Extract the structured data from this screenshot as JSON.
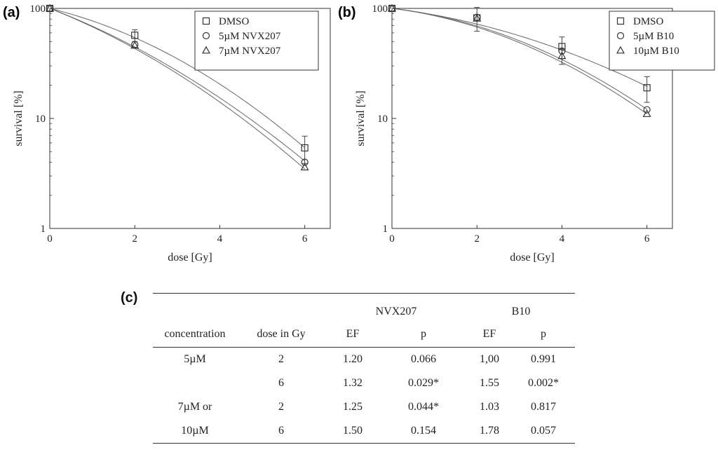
{
  "panel_a": {
    "letter": "(a)",
    "chart_data": {
      "type": "scatter",
      "yscale": "log",
      "xlabel": "dose [Gy]",
      "ylabel": "survival [%]",
      "xlim": [
        0,
        6.6
      ],
      "ylim": [
        1,
        100
      ],
      "x_ticks": [
        0,
        2,
        4,
        6
      ],
      "y_ticks": [
        1,
        10,
        100
      ],
      "legend_position": "top-right",
      "series": [
        {
          "name": "DMSO",
          "marker": "square",
          "x": [
            0,
            2,
            6
          ],
          "y": [
            100,
            57,
            5.4
          ],
          "err": [
            0,
            7,
            1.5
          ],
          "fit": {
            "alpha": 0.216,
            "beta": 0.045
          }
        },
        {
          "name": "5µM NVX207",
          "marker": "circle",
          "x": [
            0,
            2,
            6
          ],
          "y": [
            100,
            47,
            4.0
          ],
          "err": [
            0,
            0,
            0
          ],
          "fit": {
            "alpha": 0.34,
            "beta": 0.032
          }
        },
        {
          "name": "7µM NVX207",
          "marker": "triangle",
          "x": [
            0,
            2,
            6
          ],
          "y": [
            100,
            46,
            3.6
          ],
          "err": [
            0,
            0,
            0
          ],
          "fit": {
            "alpha": 0.35,
            "beta": 0.035
          }
        }
      ]
    }
  },
  "panel_b": {
    "letter": "(b)",
    "chart_data": {
      "type": "scatter",
      "yscale": "log",
      "xlabel": "dose [Gy]",
      "ylabel": "survival [%]",
      "xlim": [
        0,
        6.6
      ],
      "ylim": [
        1,
        100
      ],
      "x_ticks": [
        0,
        2,
        4,
        6
      ],
      "y_ticks": [
        1,
        10,
        100
      ],
      "legend_position": "top-right",
      "series": [
        {
          "name": "DMSO",
          "marker": "square",
          "x": [
            0,
            2,
            4,
            6
          ],
          "y": [
            100,
            82,
            45,
            19
          ],
          "err": [
            0,
            20,
            10,
            5
          ],
          "fit": {
            "alpha": 0.11,
            "beta": 0.027
          }
        },
        {
          "name": "5µM B10",
          "marker": "circle",
          "x": [
            0,
            2,
            4,
            6
          ],
          "y": [
            100,
            83,
            41,
            12
          ],
          "err": [
            0,
            0,
            0,
            0
          ],
          "fit": {
            "alpha": 0.1,
            "beta": 0.042
          }
        },
        {
          "name": "10µM B10",
          "marker": "triangle",
          "x": [
            0,
            2,
            4,
            6
          ],
          "y": [
            100,
            81,
            37,
            11
          ],
          "err": [
            0,
            0,
            6,
            0
          ],
          "fit": {
            "alpha": 0.11,
            "beta": 0.043
          }
        }
      ]
    }
  },
  "panel_c": {
    "letter": "(c)",
    "chart_data": {
      "type": "table",
      "groups": [
        "NVX207",
        "B10"
      ],
      "columns": [
        "concentration",
        "dose in Gy",
        "EF",
        "p",
        "EF",
        "p"
      ],
      "rows": [
        [
          "5µM",
          "2",
          "1.20",
          "0.066",
          "1,00",
          "0.991"
        ],
        [
          "",
          "6",
          "1.32",
          "0.029*",
          "1.55",
          "0.002*"
        ],
        [
          "7µM or",
          "2",
          "1.25",
          "0.044*",
          "1.03",
          "0.817"
        ],
        [
          "10µM",
          "6",
          "1.50",
          "0.154",
          "1.78",
          "0.057"
        ]
      ]
    }
  }
}
